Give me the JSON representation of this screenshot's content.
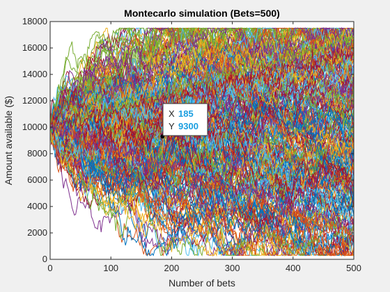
{
  "chart_data": {
    "type": "line",
    "title": "Montecarlo simulation (Bets=500)",
    "xlabel": "Number of bets",
    "ylabel": "Amount available ($)",
    "xlim": [
      0,
      500
    ],
    "ylim": [
      0,
      18000
    ],
    "xticks": [
      0,
      100,
      200,
      300,
      400,
      500
    ],
    "yticks": [
      0,
      2000,
      4000,
      6000,
      8000,
      10000,
      12000,
      14000,
      16000,
      18000
    ],
    "x_tick_labels": [
      "0",
      "100",
      "200",
      "300",
      "400",
      "500"
    ],
    "y_tick_labels": [
      "0",
      "2000",
      "4000",
      "6000",
      "8000",
      "10000",
      "12000",
      "14000",
      "16000",
      "18000"
    ],
    "grid": false,
    "start_value": 10000,
    "num_bets": 500,
    "series_colors": [
      "#0072BD",
      "#D95319",
      "#EDB120",
      "#7E2F8E",
      "#77AC30",
      "#4DBEEE",
      "#A2142F"
    ],
    "highlighted_endpoints": [
      {
        "x": 500,
        "y": 16800
      },
      {
        "x": 500,
        "y": 15600
      },
      {
        "x": 500,
        "y": 1800
      },
      {
        "x": 500,
        "y": 2600
      }
    ],
    "datatip": {
      "x_label": "X",
      "y_label": "Y",
      "x_value": "185",
      "y_value": "9300"
    }
  }
}
